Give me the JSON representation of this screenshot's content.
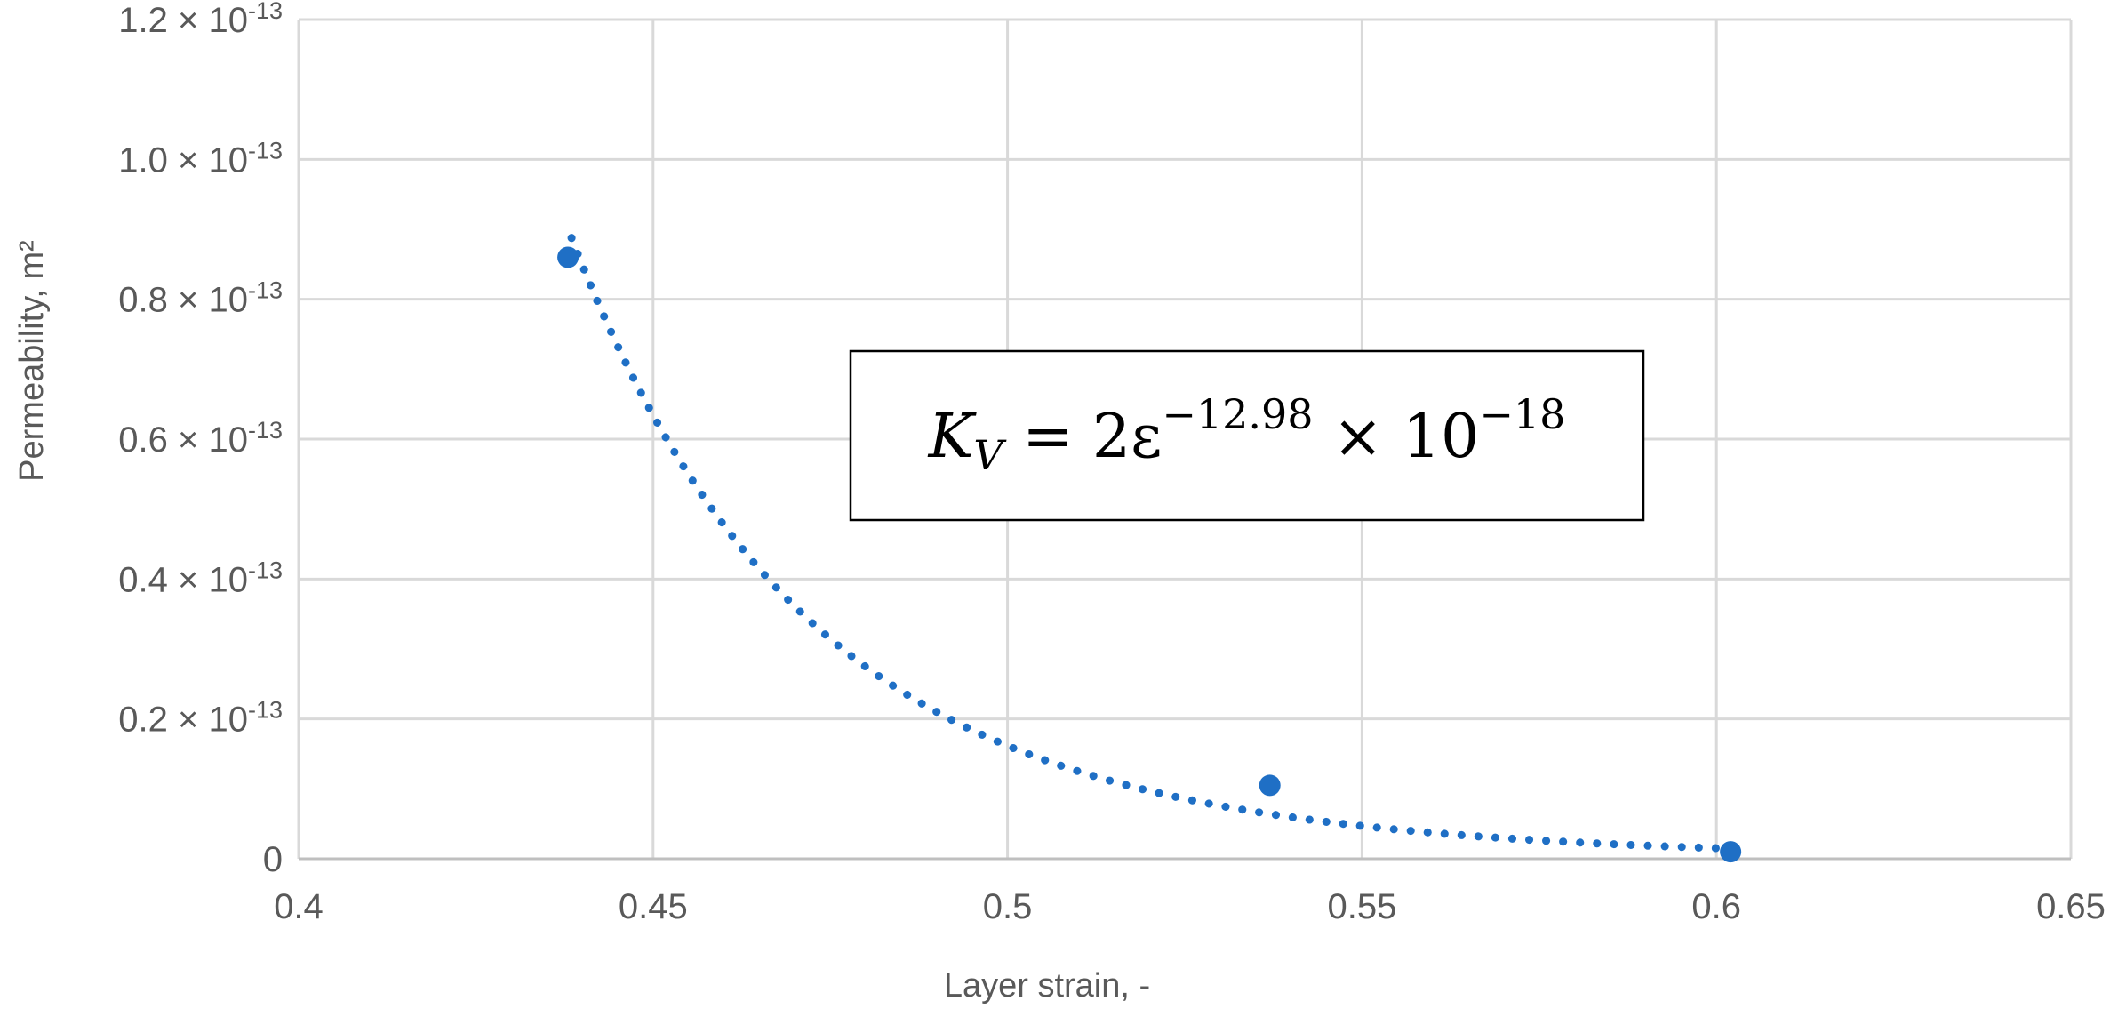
{
  "chart_data": {
    "type": "scatter",
    "x_axis": {
      "title": "Layer strain, -",
      "range": [
        0.4,
        0.65
      ],
      "ticks": [
        0.4,
        0.45,
        0.5,
        0.55,
        0.6,
        0.65
      ],
      "tick_labels": [
        "0.4",
        "0.45",
        "0.5",
        "0.55",
        "0.6",
        "0.65"
      ]
    },
    "y_axis": {
      "title": "Permeability, m²",
      "range": [
        0,
        1.2e-13
      ],
      "ticks": [
        0,
        2e-14,
        4e-14,
        6e-14,
        8e-14,
        1e-13,
        1.2e-13
      ],
      "tick_labels": [
        {
          "mantissa": "0",
          "exponent": ""
        },
        {
          "mantissa": "0.2 × 10",
          "exponent": "-13"
        },
        {
          "mantissa": "0.4 × 10",
          "exponent": "-13"
        },
        {
          "mantissa": "0.6 × 10",
          "exponent": "-13"
        },
        {
          "mantissa": "0.8 × 10",
          "exponent": "-13"
        },
        {
          "mantissa": "1.0 × 10",
          "exponent": "-13"
        },
        {
          "mantissa": "1.2 × 10",
          "exponent": "-13"
        }
      ]
    },
    "grid": true,
    "series": [
      {
        "type": "scatter",
        "color": "#1f6fc5",
        "x": [
          0.438,
          0.537,
          0.602
        ],
        "y": [
          8.6e-14,
          1.05e-14,
          1e-15
        ]
      }
    ],
    "trendline": {
      "type": "power",
      "style": "dotted",
      "color": "#1f6fc5",
      "coefficient": 2e-18,
      "exponent": -12.98,
      "x_range": [
        0.4385,
        0.602
      ]
    },
    "annotation": {
      "equation": {
        "lhs": "K",
        "lhs_sub": "V",
        "middle": " = 2ε",
        "exp1": "−12.98",
        "times": " × 10",
        "exp2": "−18"
      }
    }
  }
}
